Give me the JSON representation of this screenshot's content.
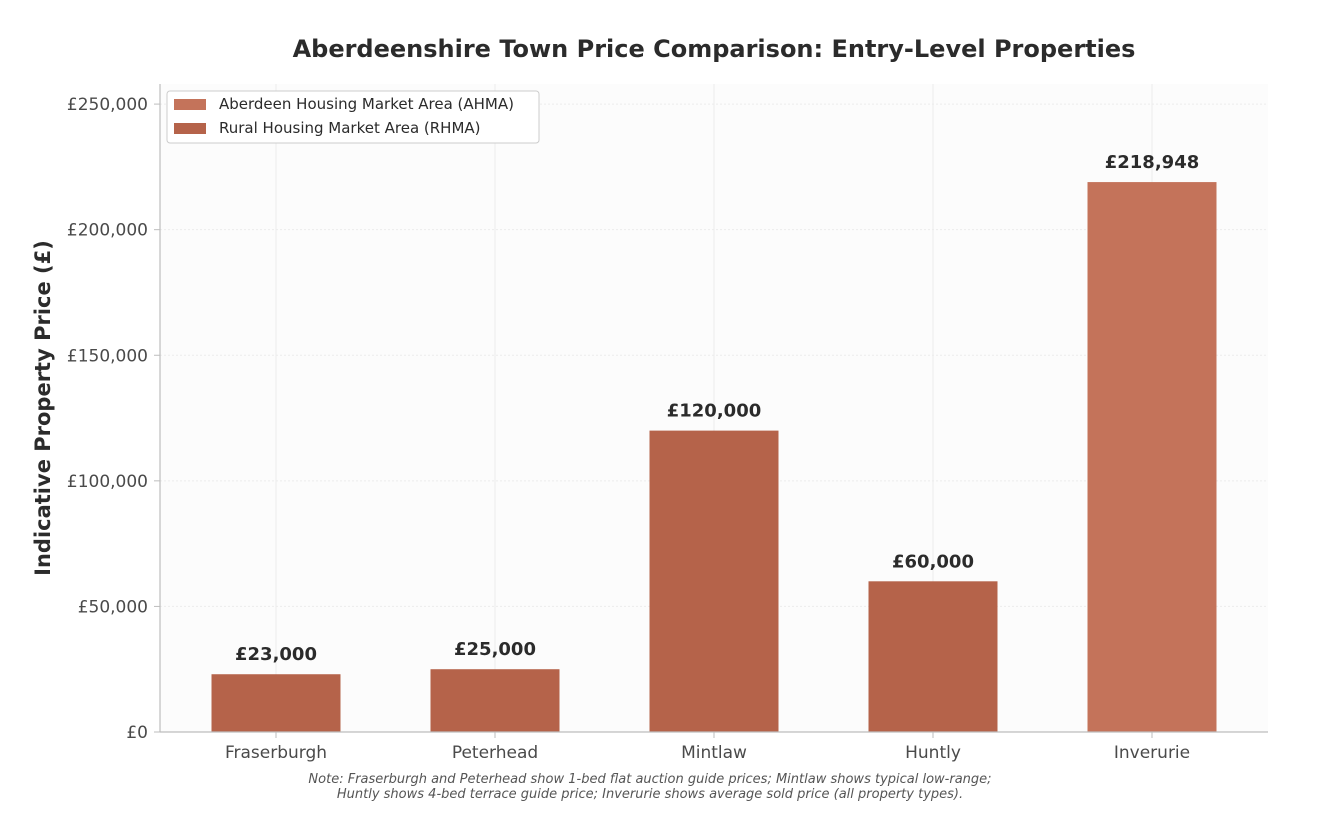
{
  "chart_data": {
    "type": "bar",
    "title": "Aberdeenshire Town Price Comparison: Entry-Level Properties",
    "xlabel": "",
    "ylabel": "Indicative Property Price (£)",
    "ylim": [
      0,
      258000
    ],
    "yticks": [
      0,
      50000,
      100000,
      150000,
      200000,
      250000
    ],
    "ytick_labels": [
      "£0",
      "£50,000",
      "£100,000",
      "£150,000",
      "£200,000",
      "£250,000"
    ],
    "categories": [
      "Fraserburgh",
      "Peterhead",
      "Mintlaw",
      "Huntly",
      "Inverurie"
    ],
    "values": [
      23000,
      25000,
      120000,
      60000,
      218948
    ],
    "value_labels": [
      "£23,000",
      "£25,000",
      "£120,000",
      "£60,000",
      "£218,948"
    ],
    "market_area": [
      "RHMA",
      "RHMA",
      "RHMA",
      "RHMA",
      "AHMA"
    ],
    "grid": true,
    "legend_position": "top-left",
    "legend": [
      {
        "key": "AHMA",
        "label": "Aberdeen Housing Market Area (AHMA)",
        "color": "#c4735a"
      },
      {
        "key": "RHMA",
        "label": "Rural Housing Market Area (RHMA)",
        "color": "#b5634a"
      }
    ],
    "note": [
      "Note: Fraserburgh and Peterhead show 1-bed flat auction guide prices; Mintlaw shows typical low-range;",
      "Huntly shows 4-bed terrace guide price; Inverurie shows average sold price (all property types)."
    ]
  }
}
